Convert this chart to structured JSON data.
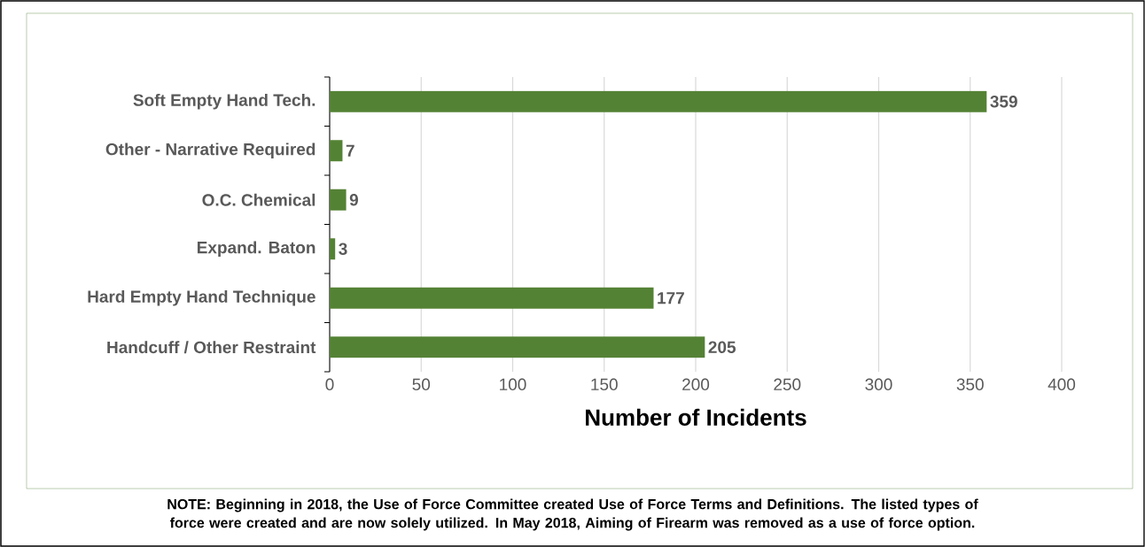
{
  "chart_data": {
    "type": "bar",
    "orientation": "horizontal",
    "categories": [
      "Soft Empty Hand Tech.",
      "Other - Narrative Required",
      "O.C. Chemical",
      "Expand. Baton",
      "Hard Empty Hand Technique",
      "Handcuff / Other Restraint"
    ],
    "values": [
      359,
      7,
      9,
      3,
      177,
      205
    ],
    "color": "#548235",
    "data_labels": true,
    "xlabel": "Number of Incidents",
    "xlim": [
      0,
      400
    ],
    "xticks": [
      0,
      50,
      100,
      150,
      200,
      250,
      300,
      350,
      400
    ],
    "grid": "x",
    "annotations": [
      "NOTE:  Beginning in 2018, the Use of Force Committee created Use of Force Terms and Definitions.  The listed types of force were created and are now solely utilized. In May 2018, Aiming of Firearm was removed as a use of force option."
    ]
  }
}
